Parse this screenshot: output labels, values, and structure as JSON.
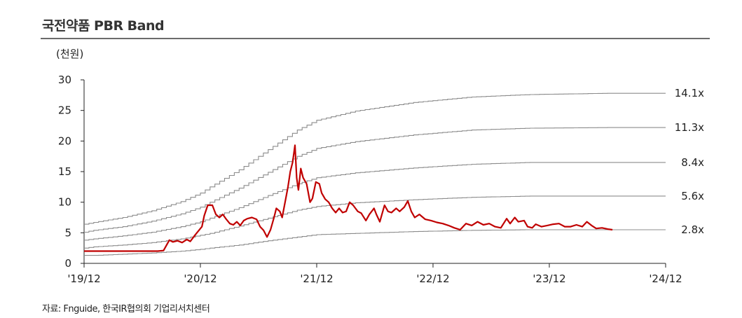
{
  "header": {
    "title": "국전약품 PBR Band"
  },
  "axis": {
    "unit_label": "(천원)"
  },
  "footer": {
    "source": "자료: Fnguide, 한국IR협의회 기업리서치센터"
  },
  "colors": {
    "price": "#c00000",
    "band": "#8c8c8c",
    "axis": "#222222"
  },
  "chart_data": {
    "type": "line",
    "title": "국전약품 PBR Band",
    "ylabel": "(천원)",
    "ylim": [
      0,
      30
    ],
    "yticks": [
      0,
      5,
      10,
      15,
      20,
      25,
      30
    ],
    "xlim": [
      2019.917,
      2024.917
    ],
    "xticks": [
      {
        "x": 2019.917,
        "label": "'19/12"
      },
      {
        "x": 2020.917,
        "label": "'20/12"
      },
      {
        "x": 2021.917,
        "label": "'21/12"
      },
      {
        "x": 2022.917,
        "label": "'22/12"
      },
      {
        "x": 2023.917,
        "label": "'23/12"
      },
      {
        "x": 2024.917,
        "label": "'24/12"
      }
    ],
    "grid": false,
    "series": [
      {
        "name": "14.1x",
        "style": "band",
        "points": [
          [
            2019.917,
            6.4
          ],
          [
            2020.0,
            6.7
          ],
          [
            2020.25,
            7.5
          ],
          [
            2020.5,
            8.6
          ],
          [
            2020.75,
            10.1
          ],
          [
            2020.917,
            11.5
          ],
          [
            2021.0,
            12.5
          ],
          [
            2021.25,
            15.3
          ],
          [
            2021.5,
            18.6
          ],
          [
            2021.75,
            21.8
          ],
          [
            2021.917,
            23.4
          ],
          [
            2022.25,
            24.9
          ],
          [
            2022.75,
            26.3
          ],
          [
            2023.25,
            27.2
          ],
          [
            2023.75,
            27.6
          ],
          [
            2024.417,
            27.8
          ],
          [
            2024.917,
            27.8
          ]
        ]
      },
      {
        "name": "11.3x",
        "style": "band",
        "points": [
          [
            2019.917,
            5.1
          ],
          [
            2020.0,
            5.4
          ],
          [
            2020.25,
            6.0
          ],
          [
            2020.5,
            6.9
          ],
          [
            2020.75,
            8.1
          ],
          [
            2020.917,
            9.2
          ],
          [
            2021.0,
            10.0
          ],
          [
            2021.25,
            12.3
          ],
          [
            2021.5,
            14.9
          ],
          [
            2021.75,
            17.5
          ],
          [
            2021.917,
            18.8
          ],
          [
            2022.25,
            19.9
          ],
          [
            2022.75,
            21.0
          ],
          [
            2023.25,
            21.8
          ],
          [
            2023.75,
            22.1
          ],
          [
            2024.417,
            22.2
          ],
          [
            2024.917,
            22.2
          ]
        ]
      },
      {
        "name": "8.4x",
        "style": "band",
        "points": [
          [
            2019.917,
            3.8
          ],
          [
            2020.0,
            4.0
          ],
          [
            2020.25,
            4.5
          ],
          [
            2020.5,
            5.1
          ],
          [
            2020.75,
            6.0
          ],
          [
            2020.917,
            6.8
          ],
          [
            2021.0,
            7.4
          ],
          [
            2021.25,
            9.1
          ],
          [
            2021.5,
            11.1
          ],
          [
            2021.75,
            13.0
          ],
          [
            2021.917,
            14.0
          ],
          [
            2022.25,
            14.8
          ],
          [
            2022.75,
            15.6
          ],
          [
            2023.25,
            16.2
          ],
          [
            2023.75,
            16.5
          ],
          [
            2024.417,
            16.5
          ],
          [
            2024.917,
            16.5
          ]
        ]
      },
      {
        "name": "5.6x",
        "style": "band",
        "points": [
          [
            2019.917,
            2.5
          ],
          [
            2020.0,
            2.7
          ],
          [
            2020.25,
            3.0
          ],
          [
            2020.5,
            3.4
          ],
          [
            2020.75,
            4.0
          ],
          [
            2020.917,
            4.6
          ],
          [
            2021.0,
            4.9
          ],
          [
            2021.25,
            6.1
          ],
          [
            2021.5,
            7.4
          ],
          [
            2021.75,
            8.7
          ],
          [
            2021.917,
            9.3
          ],
          [
            2022.25,
            9.9
          ],
          [
            2022.75,
            10.4
          ],
          [
            2023.25,
            10.8
          ],
          [
            2023.75,
            11.0
          ],
          [
            2024.417,
            11.0
          ],
          [
            2024.917,
            11.0
          ]
        ]
      },
      {
        "name": "2.8x",
        "style": "band",
        "points": [
          [
            2019.917,
            1.3
          ],
          [
            2020.0,
            1.3
          ],
          [
            2020.25,
            1.5
          ],
          [
            2020.5,
            1.7
          ],
          [
            2020.75,
            2.0
          ],
          [
            2020.917,
            2.3
          ],
          [
            2021.0,
            2.5
          ],
          [
            2021.25,
            3.0
          ],
          [
            2021.5,
            3.7
          ],
          [
            2021.75,
            4.3
          ],
          [
            2021.917,
            4.7
          ],
          [
            2022.25,
            4.9
          ],
          [
            2022.75,
            5.2
          ],
          [
            2023.25,
            5.4
          ],
          [
            2023.75,
            5.5
          ],
          [
            2024.417,
            5.5
          ],
          [
            2024.917,
            5.5
          ]
        ]
      },
      {
        "name": "",
        "style": "price",
        "points": [
          [
            2019.917,
            2.0
          ],
          [
            2020.1,
            2.0
          ],
          [
            2020.3,
            2.0
          ],
          [
            2020.55,
            2.0
          ],
          [
            2020.6,
            2.1
          ],
          [
            2020.65,
            3.8
          ],
          [
            2020.68,
            3.5
          ],
          [
            2020.72,
            3.7
          ],
          [
            2020.76,
            3.4
          ],
          [
            2020.8,
            3.9
          ],
          [
            2020.83,
            3.6
          ],
          [
            2020.87,
            4.6
          ],
          [
            2020.9,
            5.3
          ],
          [
            2020.93,
            6.0
          ],
          [
            2020.95,
            7.8
          ],
          [
            2020.98,
            9.5
          ],
          [
            2021.02,
            9.5
          ],
          [
            2021.05,
            8.0
          ],
          [
            2021.08,
            7.5
          ],
          [
            2021.11,
            8.0
          ],
          [
            2021.14,
            7.2
          ],
          [
            2021.17,
            6.5
          ],
          [
            2021.2,
            6.3
          ],
          [
            2021.23,
            6.8
          ],
          [
            2021.26,
            6.2
          ],
          [
            2021.29,
            7.0
          ],
          [
            2021.32,
            7.3
          ],
          [
            2021.36,
            7.5
          ],
          [
            2021.4,
            7.2
          ],
          [
            2021.43,
            6.0
          ],
          [
            2021.46,
            5.4
          ],
          [
            2021.49,
            4.3
          ],
          [
            2021.52,
            5.5
          ],
          [
            2021.55,
            7.5
          ],
          [
            2021.57,
            9.0
          ],
          [
            2021.6,
            8.5
          ],
          [
            2021.62,
            7.5
          ],
          [
            2021.65,
            10.5
          ],
          [
            2021.67,
            12.5
          ],
          [
            2021.69,
            15.0
          ],
          [
            2021.71,
            16.5
          ],
          [
            2021.73,
            19.3
          ],
          [
            2021.745,
            14.0
          ],
          [
            2021.76,
            12.0
          ],
          [
            2021.78,
            15.5
          ],
          [
            2021.8,
            14.0
          ],
          [
            2021.83,
            13.0
          ],
          [
            2021.86,
            10.0
          ],
          [
            2021.88,
            10.6
          ],
          [
            2021.91,
            13.3
          ],
          [
            2021.94,
            13.0
          ],
          [
            2021.96,
            11.5
          ],
          [
            2021.99,
            10.5
          ],
          [
            2022.02,
            10.0
          ],
          [
            2022.05,
            9.0
          ],
          [
            2022.08,
            8.3
          ],
          [
            2022.11,
            9.0
          ],
          [
            2022.14,
            8.3
          ],
          [
            2022.17,
            8.5
          ],
          [
            2022.2,
            10.0
          ],
          [
            2022.23,
            9.5
          ],
          [
            2022.27,
            8.5
          ],
          [
            2022.3,
            8.2
          ],
          [
            2022.34,
            7.0
          ],
          [
            2022.37,
            8.0
          ],
          [
            2022.41,
            9.0
          ],
          [
            2022.43,
            8.0
          ],
          [
            2022.46,
            6.8
          ],
          [
            2022.5,
            9.5
          ],
          [
            2022.53,
            8.5
          ],
          [
            2022.56,
            8.3
          ],
          [
            2022.6,
            9.0
          ],
          [
            2022.63,
            8.5
          ],
          [
            2022.67,
            9.2
          ],
          [
            2022.7,
            10.2
          ],
          [
            2022.73,
            8.5
          ],
          [
            2022.76,
            7.5
          ],
          [
            2022.8,
            8.0
          ],
          [
            2022.85,
            7.2
          ],
          [
            2022.9,
            7.0
          ],
          [
            2022.95,
            6.7
          ],
          [
            2023.0,
            6.5
          ],
          [
            2023.05,
            6.2
          ],
          [
            2023.1,
            5.8
          ],
          [
            2023.15,
            5.5
          ],
          [
            2023.2,
            6.5
          ],
          [
            2023.25,
            6.2
          ],
          [
            2023.3,
            6.8
          ],
          [
            2023.35,
            6.3
          ],
          [
            2023.4,
            6.5
          ],
          [
            2023.45,
            6.0
          ],
          [
            2023.5,
            5.8
          ],
          [
            2023.55,
            7.3
          ],
          [
            2023.58,
            6.5
          ],
          [
            2023.62,
            7.5
          ],
          [
            2023.65,
            6.8
          ],
          [
            2023.7,
            7.0
          ],
          [
            2023.73,
            6.0
          ],
          [
            2023.77,
            5.8
          ],
          [
            2023.8,
            6.4
          ],
          [
            2023.85,
            6.0
          ],
          [
            2023.9,
            6.2
          ],
          [
            2023.95,
            6.4
          ],
          [
            2024.0,
            6.5
          ],
          [
            2024.05,
            6.0
          ],
          [
            2024.1,
            6.0
          ],
          [
            2024.15,
            6.3
          ],
          [
            2024.2,
            6.0
          ],
          [
            2024.24,
            6.8
          ],
          [
            2024.28,
            6.2
          ],
          [
            2024.32,
            5.7
          ],
          [
            2024.37,
            5.8
          ],
          [
            2024.42,
            5.6
          ],
          [
            2024.46,
            5.5
          ]
        ]
      }
    ]
  }
}
